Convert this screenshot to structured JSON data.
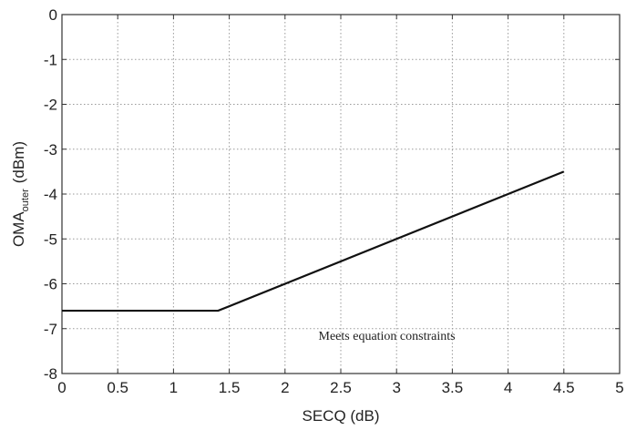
{
  "chart_data": {
    "type": "line",
    "xlabel": "SECQ (dB)",
    "ylabel_main": "OMA",
    "ylabel_sub": "outer",
    "ylabel_unit": "(dBm)",
    "xlim": [
      0,
      5
    ],
    "ylim": [
      -8,
      0
    ],
    "xticks": [
      0,
      0.5,
      1,
      1.5,
      2,
      2.5,
      3,
      3.5,
      4,
      4.5,
      5
    ],
    "xtick_labels": [
      "0",
      "0.5",
      "1",
      "1.5",
      "2",
      "2.5",
      "3",
      "3.5",
      "4",
      "4.5",
      "5"
    ],
    "yticks": [
      0,
      -1,
      -2,
      -3,
      -4,
      -5,
      -6,
      -7,
      -8
    ],
    "ytick_labels": [
      "0",
      "-1",
      "-2",
      "-3",
      "-4",
      "-5",
      "-6",
      "-7",
      "-8"
    ],
    "grid": true,
    "series": [
      {
        "x": [
          0,
          1.4,
          4.5
        ],
        "y": [
          -6.6,
          -6.6,
          -3.5
        ],
        "color": "#111111"
      }
    ],
    "annotation": {
      "text": "Meets equation constraints",
      "x": 2.3,
      "y": -7.25
    }
  }
}
